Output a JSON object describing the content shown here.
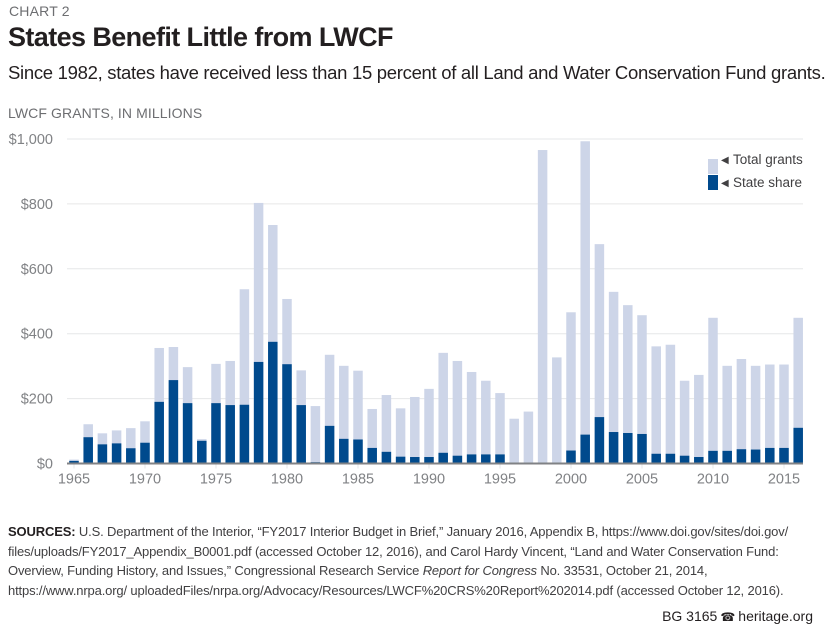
{
  "header": {
    "chart_number": "CHART 2",
    "title": "States Benefit Little from LWCF",
    "subtitle": "Since 1982, states have received less than 15 percent of all Land and Water Conservation Fund grants.",
    "units_label": "LWCF GRANTS, IN MILLIONS"
  },
  "colors": {
    "total": "#cdd5e8",
    "state": "#004a8d",
    "grid": "#e6e7e8",
    "axis": "#808285"
  },
  "chart_data": {
    "type": "bar",
    "stacking": "overlay",
    "title": "States Benefit Little from LWCF",
    "subtitle": "Since 1982, states have received less than 15 percent of all Land and Water Conservation Fund grants.",
    "xlabel": "",
    "ylabel": "LWCF GRANTS, IN MILLIONS",
    "ylim": [
      0,
      1000
    ],
    "yticks": [
      0,
      200,
      400,
      600,
      800,
      1000
    ],
    "ytick_labels": [
      "$0",
      "$200",
      "$400",
      "$600",
      "$800",
      "$1,000"
    ],
    "xticks": [
      1965,
      1970,
      1975,
      1980,
      1985,
      1990,
      1995,
      2000,
      2005,
      2010,
      2015
    ],
    "xtick_labels": [
      "1965",
      "1970",
      "1975",
      "1980",
      "1985",
      "1990",
      "1995",
      "2000",
      "2005",
      "2010",
      "2015"
    ],
    "grid": true,
    "legend_position": "top-right",
    "categories": [
      1965,
      1966,
      1967,
      1968,
      1969,
      1970,
      1971,
      1972,
      1973,
      1974,
      1975,
      1976,
      1977,
      1978,
      1979,
      1980,
      1981,
      1982,
      1983,
      1984,
      1985,
      1986,
      1987,
      1988,
      1989,
      1990,
      1991,
      1992,
      1993,
      1994,
      1995,
      1996,
      1997,
      1998,
      1999,
      2000,
      2001,
      2002,
      2003,
      2004,
      2005,
      2006,
      2007,
      2008,
      2009,
      2010,
      2011,
      2012,
      2013,
      2014,
      2015,
      2016
    ],
    "series": [
      {
        "name": "Total grants",
        "legend_label": "Total grants",
        "values": [
          12,
          121,
          93,
          102,
          109,
          130,
          356,
          359,
          297,
          75,
          307,
          316,
          537,
          803,
          735,
          507,
          287,
          177,
          335,
          301,
          286,
          168,
          211,
          170,
          205,
          230,
          341,
          316,
          282,
          255,
          217,
          138,
          160,
          966,
          327,
          466,
          993,
          676,
          529,
          488,
          457,
          361,
          366,
          255,
          273,
          449,
          301,
          322,
          301,
          305,
          305,
          449
        ]
      },
      {
        "name": "State share",
        "legend_label": "State share",
        "values": [
          8,
          81,
          59,
          62,
          47,
          64,
          190,
          257,
          186,
          70,
          186,
          180,
          181,
          313,
          375,
          306,
          180,
          4,
          116,
          76,
          74,
          48,
          36,
          21,
          20,
          20,
          33,
          24,
          28,
          28,
          28,
          1,
          1,
          1,
          1,
          40,
          89,
          143,
          97,
          94,
          91,
          30,
          30,
          24,
          20,
          39,
          39,
          44,
          43,
          48,
          48,
          110
        ]
      }
    ]
  },
  "sources": {
    "label": "SOURCES:",
    "text_before_italic": " U.S. Department of the Interior, “FY2017 Interior Budget in Brief,” January 2016, Appendix B, https://www.doi.gov/sites/doi.gov/ files/uploads/FY2017_Appendix_B0001.pdf (accessed October 12, 2016), and Carol Hardy Vincent, “Land and Water Conservation Fund: Overview, Funding History, and Issues,” Congressional Research Service ",
    "italic": "Report for Congress",
    "text_after_italic": " No. 33531, October 21, 2014, https://www.nrpa.org/ uploadedFiles/nrpa.org/Advocacy/Resources/LWCF%20CRS%20Report%202014.pdf (accessed October 12, 2016)."
  },
  "footer": {
    "report_id": "BG 3165",
    "bell_icon": "liberty-bell-icon",
    "site": "heritage.org"
  }
}
